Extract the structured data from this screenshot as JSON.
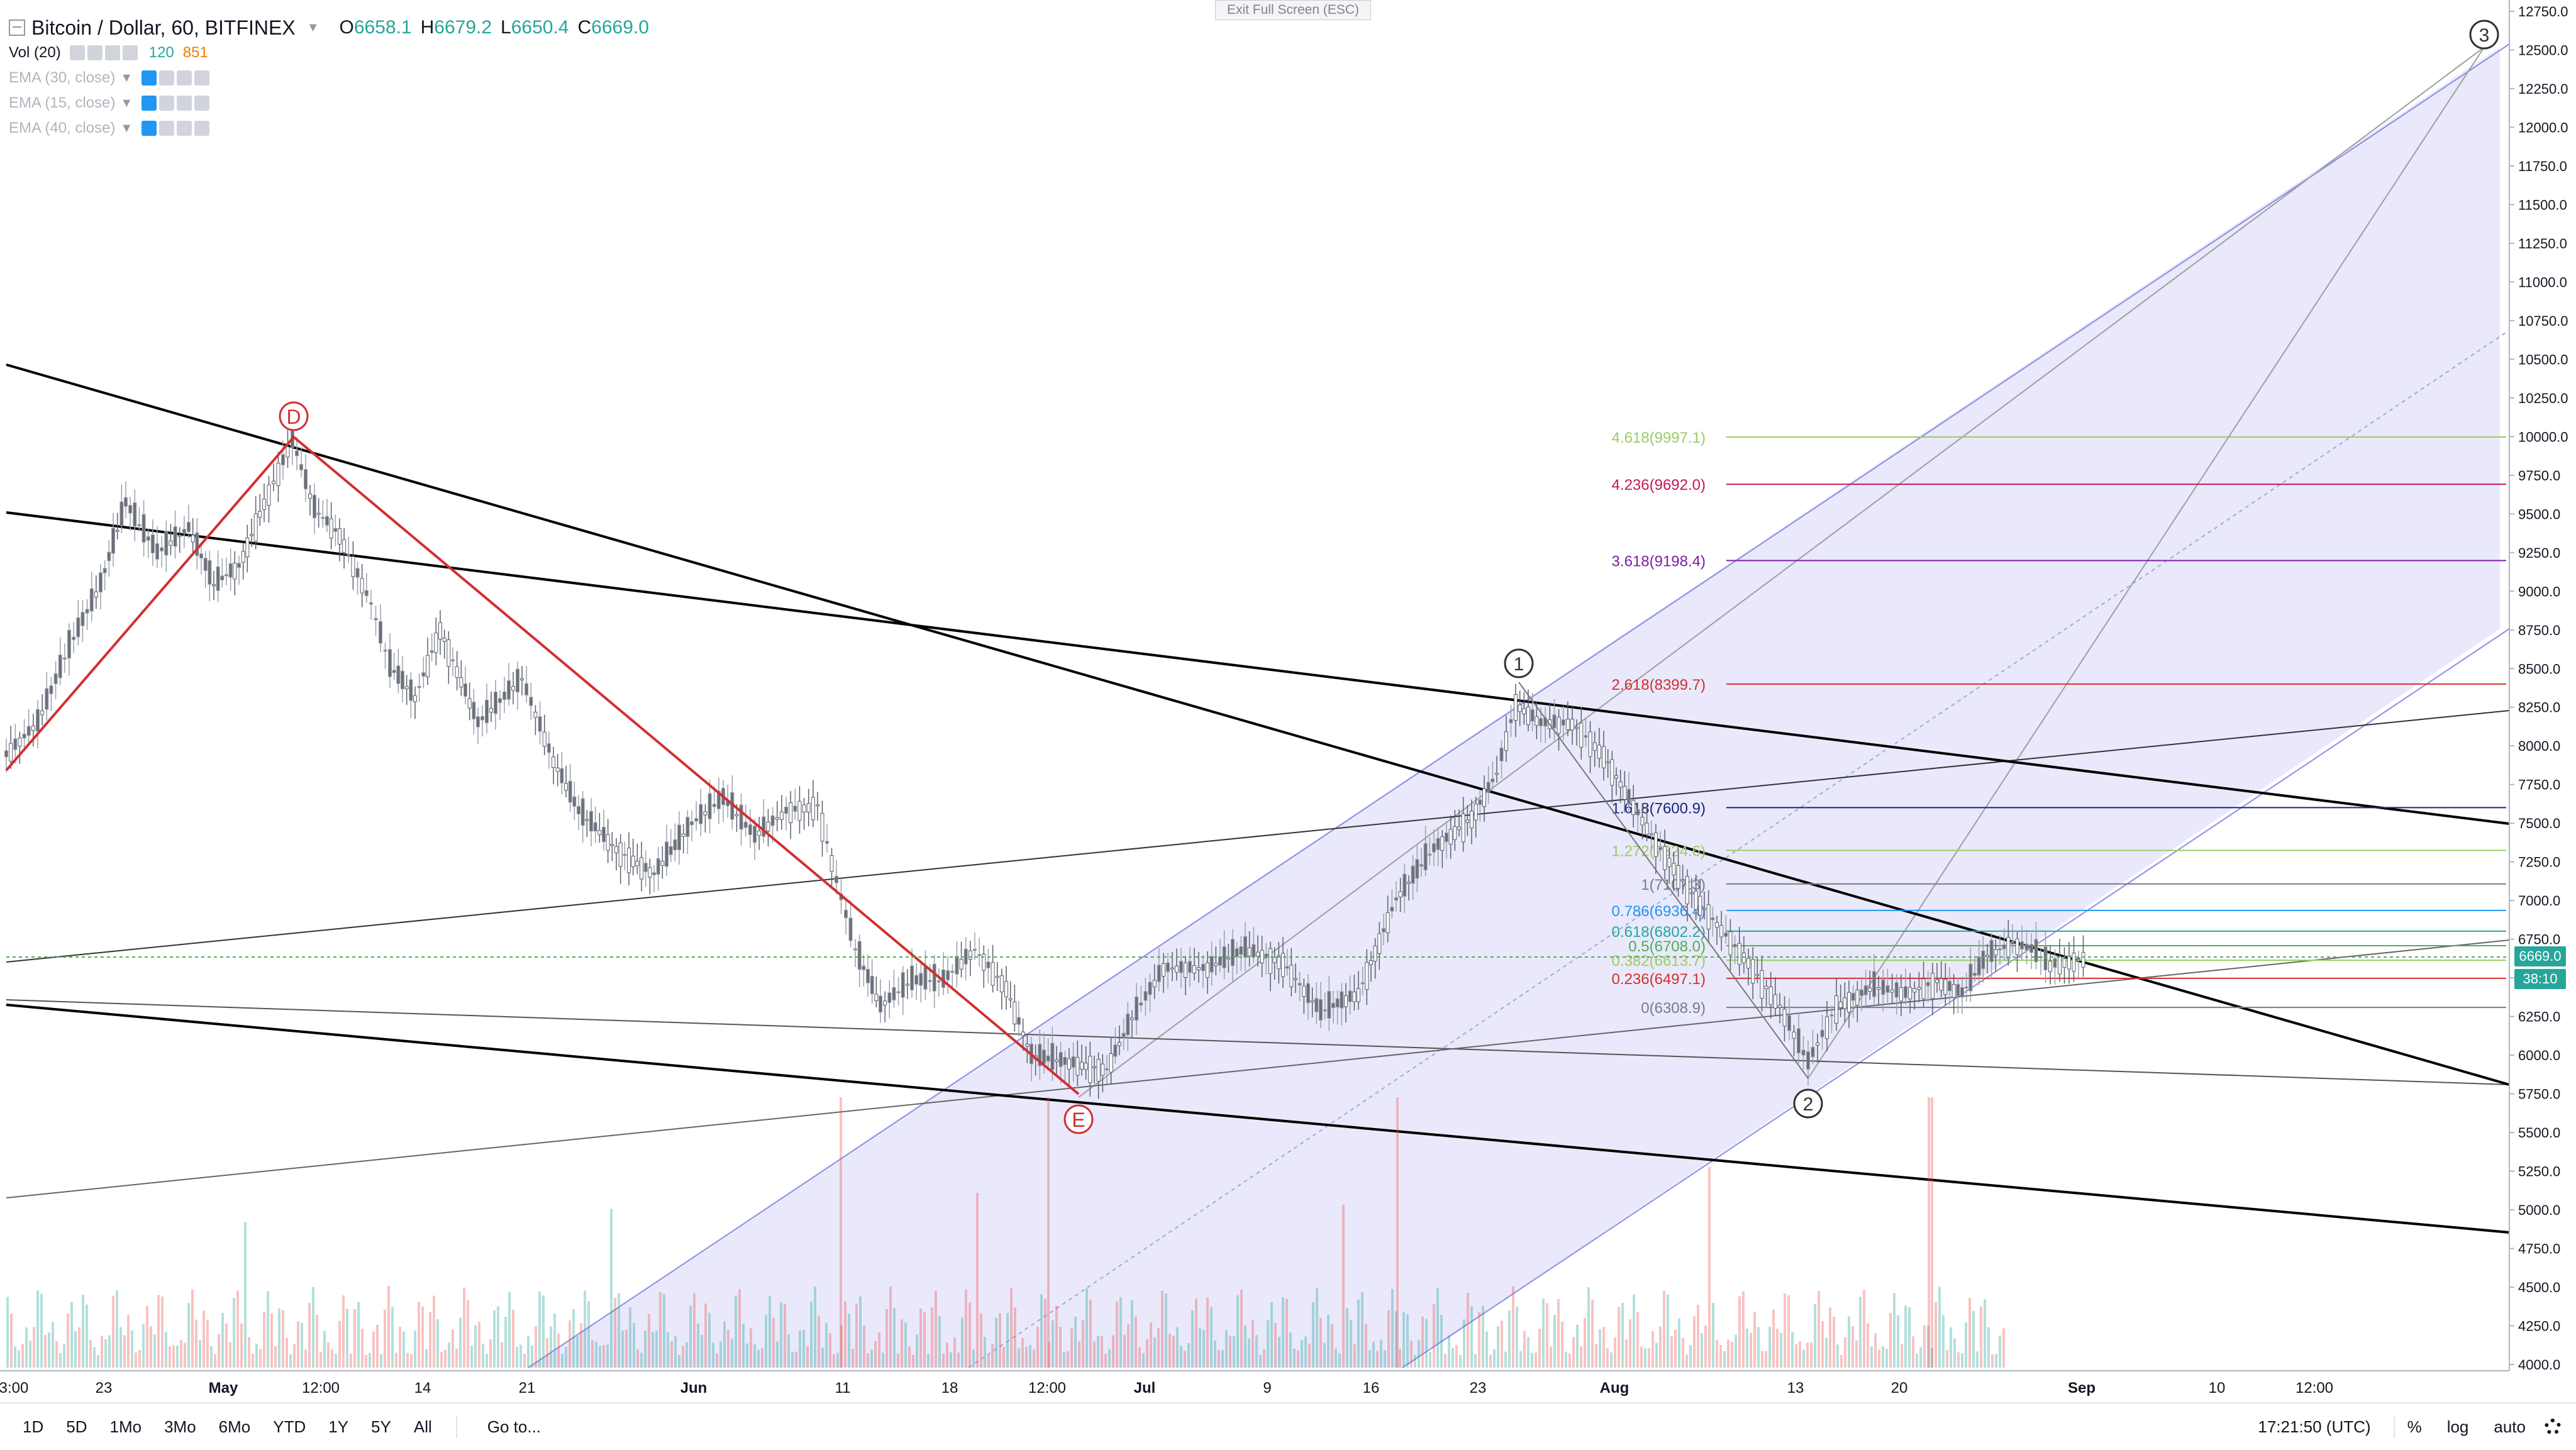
{
  "header": {
    "symbol": "Bitcoin / Dollar, 60, BITFINEX",
    "ohlc": [
      {
        "key": "O",
        "value": "6658.1"
      },
      {
        "key": "H",
        "value": "6679.2"
      },
      {
        "key": "L",
        "value": "6650.4"
      },
      {
        "key": "C",
        "value": "6669.0"
      }
    ],
    "volume": {
      "label": "Vol (20)",
      "v1": "120",
      "v2": "851"
    },
    "indicators": [
      "EMA (30, close)",
      "EMA (15, close)",
      "EMA (40, close)"
    ]
  },
  "exit_fullscreen": "Exit Full Screen (ESC)",
  "price_axis": {
    "ticks": [
      "12750.0",
      "12500.0",
      "12250.0",
      "12000.0",
      "11750.0",
      "11500.0",
      "11250.0",
      "11000.0",
      "10750.0",
      "10500.0",
      "10250.0",
      "10000.0",
      "9750.0",
      "9500.0",
      "9250.0",
      "9000.0",
      "8750.0",
      "8500.0",
      "8250.0",
      "8000.0",
      "7750.0",
      "7500.0",
      "7250.0",
      "7000.0",
      "6750.0",
      "6500.0",
      "6250.0",
      "6000.0",
      "5750.0",
      "5500.0",
      "5250.0",
      "5000.0",
      "4750.0",
      "4500.0",
      "4250.0",
      "4000.0"
    ],
    "current_price": "6669.0",
    "countdown": "38:10"
  },
  "time_axis": {
    "labels": [
      "3:00",
      "23",
      "May",
      "12:00",
      "14",
      "21",
      "Jun",
      "11",
      "18",
      "12:00",
      "Jul",
      "9",
      "16",
      "23",
      "Aug",
      "13",
      "20",
      "Sep",
      "10",
      "12:00"
    ]
  },
  "wave_labels": {
    "d": "D",
    "e": "E",
    "w1": "1",
    "w2": "2",
    "w3": "3"
  },
  "fib_levels": [
    {
      "ratio": "4.618",
      "price": "9997.1",
      "color": "#9ccc65"
    },
    {
      "ratio": "4.236",
      "price": "9692.0",
      "color": "#c2185b"
    },
    {
      "ratio": "3.618",
      "price": "9198.4",
      "color": "#7b1fa2"
    },
    {
      "ratio": "2.618",
      "price": "8399.7",
      "color": "#d32f2f"
    },
    {
      "ratio": "1.618",
      "price": "7600.9",
      "color": "#1a237e"
    },
    {
      "ratio": "1.272",
      "price": "7324.6",
      "color": "#9ccc65"
    },
    {
      "ratio": "1",
      "price": "7107.3",
      "color": "#787b86"
    },
    {
      "ratio": "0.786",
      "price": "6936.4",
      "color": "#2196f3"
    },
    {
      "ratio": "0.618",
      "price": "6802.2",
      "color": "#26a69a"
    },
    {
      "ratio": "0.5",
      "price": "6708.0",
      "color": "#4caf50"
    },
    {
      "ratio": "0.382",
      "price": "6613.7",
      "color": "#9ccc65"
    },
    {
      "ratio": "0.236",
      "price": "6497.1",
      "color": "#d32f2f"
    },
    {
      "ratio": "0",
      "price": "6308.9",
      "color": "#787b86"
    }
  ],
  "bottom_bar": {
    "timeframes": [
      "1D",
      "5D",
      "1Mo",
      "3Mo",
      "6Mo",
      "YTD",
      "1Y",
      "5Y",
      "All"
    ],
    "goto": "Go to...",
    "clock": "17:21:50 (UTC)",
    "percent": "%",
    "log": "log",
    "auto": "auto"
  },
  "colors": {
    "up": "#26a69a",
    "down": "#ef5350",
    "channel_fill": "#e8e8fb",
    "channel_line": "#8c8ce6",
    "elliott_red": "#d32f2f",
    "price_line": "#4caf50",
    "countdown_bg": "#26a69a"
  },
  "icons": [
    "collapse-icon",
    "eye-icon",
    "gear-icon",
    "close-icon",
    "more-icon",
    "settings-icon"
  ]
}
